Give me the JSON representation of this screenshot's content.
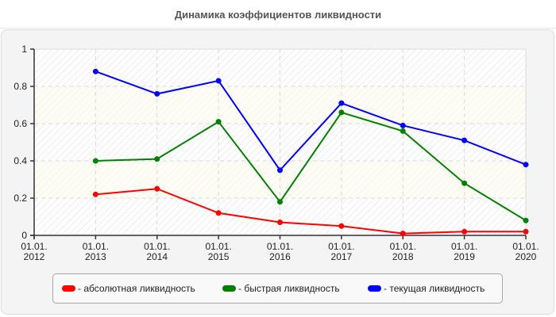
{
  "title": "Динамика коэффициентов ликвидности",
  "colors": {
    "absolute": "#ff0000",
    "quick": "#008000",
    "current": "#0000ff",
    "band_a": "#ffffff",
    "band_b": "#fdfdf4",
    "panel": "#f4f4f4",
    "grid": "#d9d9d9"
  },
  "y_axis": {
    "ticks": [
      "0",
      "0.2",
      "0.4",
      "0.6",
      "0.8",
      "1"
    ]
  },
  "x_axis": {
    "ticks": [
      {
        "line1": "01.01.",
        "line2": "2012"
      },
      {
        "line1": "01.01.",
        "line2": "2013"
      },
      {
        "line1": "01.01.",
        "line2": "2014"
      },
      {
        "line1": "01.01.",
        "line2": "2015"
      },
      {
        "line1": "01.01.",
        "line2": "2016"
      },
      {
        "line1": "01.01.",
        "line2": "2017"
      },
      {
        "line1": "01.01.",
        "line2": "2018"
      },
      {
        "line1": "01.01.",
        "line2": "2019"
      },
      {
        "line1": "01.01.",
        "line2": "2020"
      }
    ]
  },
  "legend": {
    "items": [
      {
        "label": "- абсолютная ликвидность",
        "color": "#ff0000"
      },
      {
        "label": "- быстрая ликвидность",
        "color": "#008000"
      },
      {
        "label": "- текущая ликвидность",
        "color": "#0000ff"
      }
    ]
  },
  "chart_data": {
    "type": "line",
    "title": "Динамика коэффициентов ликвидности",
    "xlabel": "",
    "ylabel": "",
    "ylim": [
      0,
      1
    ],
    "grid": true,
    "legend_position": "bottom",
    "categories": [
      "01.01.2012",
      "01.01.2013",
      "01.01.2014",
      "01.01.2015",
      "01.01.2016",
      "01.01.2017",
      "01.01.2018",
      "01.01.2019",
      "01.01.2020"
    ],
    "series": [
      {
        "name": "абсолютная ликвидность",
        "color": "#ff0000",
        "values": [
          null,
          0.22,
          0.25,
          0.12,
          0.07,
          0.05,
          0.01,
          0.02,
          0.02
        ]
      },
      {
        "name": "быстрая ликвидность",
        "color": "#008000",
        "values": [
          null,
          0.4,
          0.41,
          0.61,
          0.18,
          0.66,
          0.56,
          0.28,
          0.08
        ]
      },
      {
        "name": "текущая ликвидность",
        "color": "#0000ff",
        "values": [
          null,
          0.88,
          0.76,
          0.83,
          0.35,
          0.71,
          0.59,
          0.51,
          0.38
        ]
      }
    ]
  }
}
